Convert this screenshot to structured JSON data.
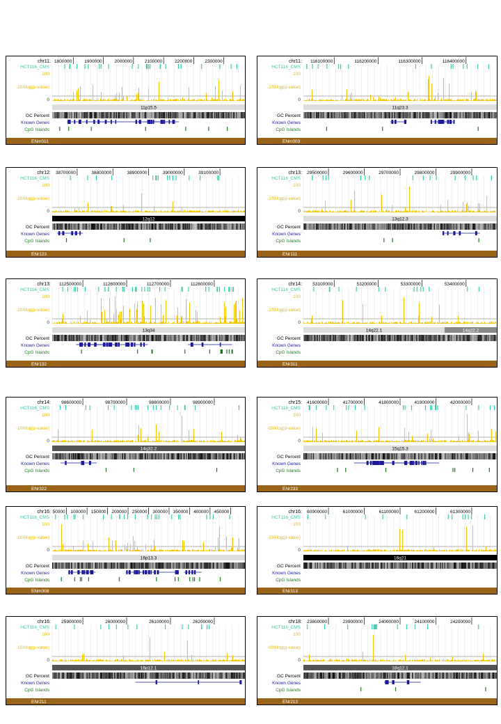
{
  "track_labels": {
    "cms": "HCT116_CMS",
    "y_top": "100",
    "y_zero": "0",
    "pvalue": "-10Xlog(p-value)",
    "gc": "GC Percent",
    "genes": "Known Genes",
    "cpg": "CpG Islands"
  },
  "colors": {
    "cms": "#2fc9a8",
    "signal": "#f5c400",
    "signal_label": "#e8b800",
    "genes": "#1a1a9a",
    "cpg": "#1e7a1e",
    "footer": "#9a6418",
    "band_light": "#dddddd",
    "band_dark": "#000000",
    "band_mid": "#555555",
    "band_gray": "#888888"
  },
  "panels": [
    {
      "chrom": "chr11:",
      "ticks": [
        "1800000",
        "1900000",
        "2000000",
        "2100000",
        "2200000",
        "2300000"
      ],
      "bands": [
        {
          "label": "11p15.5",
          "shade": "light",
          "start": 0,
          "end": 1
        }
      ],
      "region": "ENm011",
      "density": 0.35,
      "genes": "dense",
      "cpg": "some"
    },
    {
      "chrom": "chr11:",
      "ticks": [
        "116100000",
        "116200000",
        "116300000",
        "116400000"
      ],
      "bands": [
        {
          "label": "11q23.3",
          "shade": "light",
          "start": 0,
          "end": 1
        }
      ],
      "region": "ENm003",
      "density": 0.15,
      "genes": "cluster",
      "cpg": "few"
    },
    {
      "chrom": "chr12:",
      "ticks": [
        "38700000",
        "38800000",
        "38900000",
        "39000000",
        "39100000"
      ],
      "bands": [
        {
          "label": "12q12",
          "shade": "dark",
          "start": 0,
          "end": 1
        }
      ],
      "region": "ENr123",
      "density": 0.15,
      "genes": "sparse",
      "cpg": "few"
    },
    {
      "chrom": "chr13:",
      "ticks": [
        "29500000",
        "29600000",
        "29700000",
        "29800000",
        "29900000"
      ],
      "bands": [
        {
          "label": "13q12.3",
          "shade": "light",
          "start": 0,
          "end": 1
        }
      ],
      "region": "ENr111",
      "density": 0.2,
      "genes": "single",
      "cpg": "few"
    },
    {
      "chrom": "chr13:",
      "ticks": [
        "112500000",
        "112600000",
        "112700000",
        "112800000"
      ],
      "bands": [
        {
          "label": "13q34",
          "shade": "light",
          "start": 0,
          "end": 1
        }
      ],
      "region": "ENr132",
      "density": 0.7,
      "genes": "dense",
      "cpg": "many"
    },
    {
      "chrom": "chr14:",
      "ticks": [
        "53100000",
        "53200000",
        "53300000",
        "53400000"
      ],
      "bands": [
        {
          "label": "14q22.1",
          "shade": "light",
          "start": 0,
          "end": 0.73
        },
        {
          "label": "14q22.2",
          "shade": "gray",
          "start": 0.73,
          "end": 1
        }
      ],
      "region": "ENr311",
      "density": 0.1,
      "genes": "none",
      "cpg": "none"
    },
    {
      "chrom": "chr14:",
      "ticks": [
        "98600000",
        "98700000",
        "98800000",
        "98900000"
      ],
      "bands": [
        {
          "label": "14q32.2",
          "shade": "mid",
          "start": 0,
          "end": 1
        }
      ],
      "region": "ENr322",
      "density": 0.25,
      "genes": "single",
      "cpg": "few"
    },
    {
      "chrom": "chr15:",
      "ticks": [
        "41600000",
        "41700000",
        "41800000",
        "41900000",
        "42000000"
      ],
      "bands": [
        {
          "label": "15q15.3",
          "shade": "light",
          "start": 0,
          "end": 1
        }
      ],
      "region": "ENr233",
      "density": 0.3,
      "genes": "dense",
      "cpg": "some"
    },
    {
      "chrom": "chr16:",
      "ticks": [
        "50000",
        "100000",
        "150000",
        "200000",
        "250000",
        "300000",
        "350000",
        "400000",
        "450000"
      ],
      "bands": [
        {
          "label": "16p13.3",
          "shade": "light",
          "start": 0,
          "end": 1
        }
      ],
      "region": "ENm008",
      "density": 0.4,
      "genes": "dense",
      "cpg": "many"
    },
    {
      "chrom": "chr16:",
      "ticks": [
        "60900000",
        "61000000",
        "61100000",
        "61200000",
        "61300000"
      ],
      "bands": [
        {
          "label": "16q21",
          "shade": "dark",
          "start": 0,
          "end": 1
        }
      ],
      "region": "ENr313",
      "density": 0.05,
      "genes": "none",
      "cpg": "none"
    },
    {
      "chrom": "chr16:",
      "ticks": [
        "25900000",
        "26000000",
        "26100000",
        "26200000"
      ],
      "bands": [
        {
          "label": "16p12.1",
          "shade": "mid",
          "start": 0,
          "end": 1
        }
      ],
      "region": "ENr211",
      "density": 0.12,
      "genes": "long",
      "cpg": "none"
    },
    {
      "chrom": "chr18:",
      "ticks": [
        "23800000",
        "23900000",
        "24000000",
        "24100000",
        "24200000"
      ],
      "bands": [
        {
          "label": "18q12.1",
          "shade": "mid",
          "start": 0,
          "end": 1
        }
      ],
      "region": "ENr213",
      "density": 0.12,
      "genes": "single",
      "cpg": "few"
    }
  ]
}
